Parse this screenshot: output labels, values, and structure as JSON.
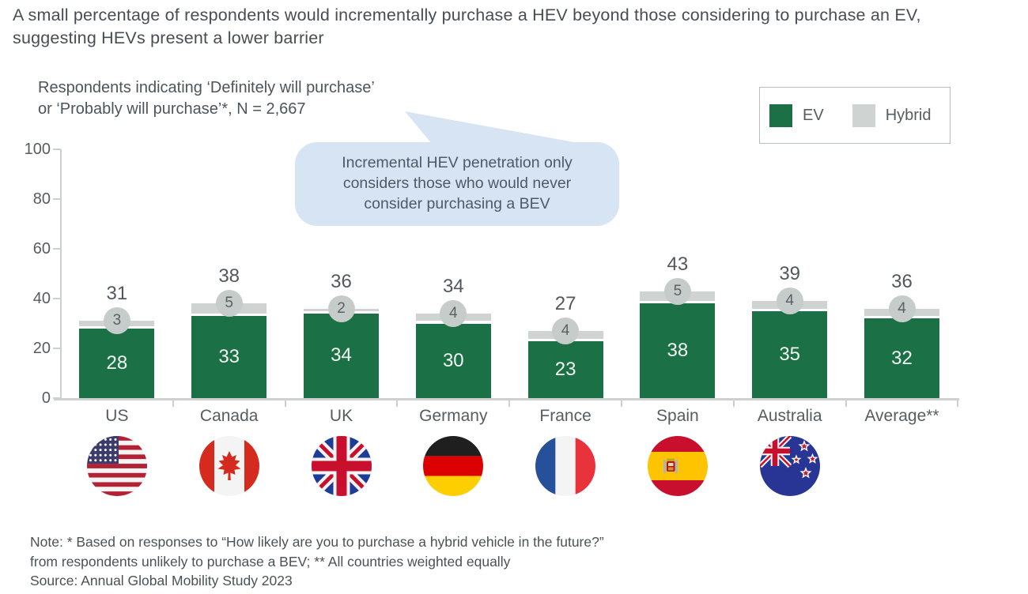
{
  "title": "A small percentage of respondents would incrementally purchase a HEV beyond those considering to purchase an EV, suggesting HEVs present a lower barrier",
  "subtitle": {
    "line1": "Respondents indicating ‘Definitely will purchase’",
    "line2": "or ‘Probably will purchase’*, N = 2,667"
  },
  "legend": {
    "ev_label": "EV",
    "hybrid_label": "Hybrid"
  },
  "callout_text": "Incremental HEV penetration only considers those who would never consider purchasing a BEV",
  "colors": {
    "ev": "#1b7046",
    "hybrid": "#cfd4d2",
    "badge": "#c5ccc9",
    "axis": "#ccd1d0",
    "callout_bg": "#d7e4f4"
  },
  "chart_data": {
    "type": "bar",
    "stacked": true,
    "title": "Respondents indicating ‘Definitely will purchase’ or ‘Probably will purchase’*, N = 2,667",
    "categories": [
      "US",
      "Canada",
      "UK",
      "Germany",
      "France",
      "Spain",
      "Australia",
      "Average**"
    ],
    "flags": [
      "us",
      "canada",
      "uk",
      "germany",
      "france",
      "spain",
      "australia",
      null
    ],
    "series": [
      {
        "name": "EV",
        "values": [
          28,
          33,
          34,
          30,
          23,
          38,
          35,
          32
        ],
        "color": "#1b7046"
      },
      {
        "name": "Hybrid",
        "values": [
          3,
          5,
          2,
          4,
          4,
          5,
          4,
          4
        ],
        "color": "#cfd4d2"
      }
    ],
    "totals": [
      31,
      38,
      36,
      34,
      27,
      43,
      39,
      36
    ],
    "xlabel": "",
    "ylabel": "",
    "ylim": [
      0,
      100
    ],
    "y_ticks": [
      0,
      20,
      40,
      60,
      80,
      100
    ],
    "grid": false,
    "legend_position": "top-right"
  },
  "notes": {
    "line1": "Note: * Based on responses to “How likely are you to purchase a hybrid vehicle in the future?”",
    "line2": "from respondents unlikely to purchase a BEV; ** All countries weighted equally",
    "line3": "Source: Annual Global Mobility Study 2023"
  }
}
